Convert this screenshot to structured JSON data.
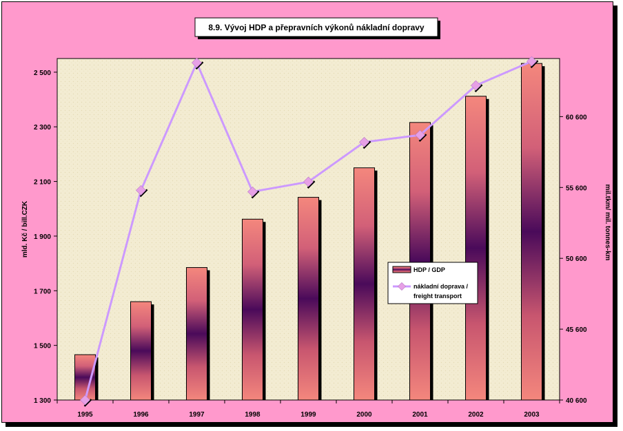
{
  "chart_data": {
    "type": "bar",
    "title": "8.9. Vývoj HDP a přepravních výkonů nákladní dopravy",
    "categories": [
      "1995",
      "1996",
      "1997",
      "1998",
      "1999",
      "2000",
      "2001",
      "2002",
      "2003"
    ],
    "series": [
      {
        "name": "HDP / GDP",
        "type": "bar",
        "axis": "left",
        "values": [
          1466,
          1660,
          1785,
          1962,
          2042,
          2150,
          2316,
          2412,
          2532
        ]
      },
      {
        "name": "nákladní doprava / freight transport",
        "type": "line",
        "axis": "right",
        "values": [
          40600,
          55400,
          64400,
          55300,
          56000,
          58800,
          59300,
          62800,
          64500
        ]
      }
    ],
    "ylabel": "mld. Kč / bill.CZK",
    "y2label": "mil.tkm/ mil. tonnes-km",
    "ylim": [
      1300,
      2550
    ],
    "y2lim": [
      40600,
      64700
    ],
    "yticks": [
      1300,
      1500,
      1700,
      1900,
      2100,
      2300,
      2500
    ],
    "y2ticks": [
      40600,
      45600,
      50600,
      55600,
      60600
    ],
    "ytick_labels": [
      "1 300",
      "1 500",
      "1 700",
      "1 900",
      "2 100",
      "2 300",
      "2 500"
    ],
    "y2tick_labels": [
      "40 600",
      "45 600",
      "50 600",
      "55 600",
      "60 600"
    ],
    "legend_position": "center-right",
    "grid": false,
    "colors": {
      "frame": "#ff99cc",
      "plot_background": "#f3ecd2",
      "bar_outer": "#f2837a",
      "bar_inner": "#4a0a5a",
      "line": "#cc99ff",
      "marker": "#e6a0e6"
    }
  }
}
